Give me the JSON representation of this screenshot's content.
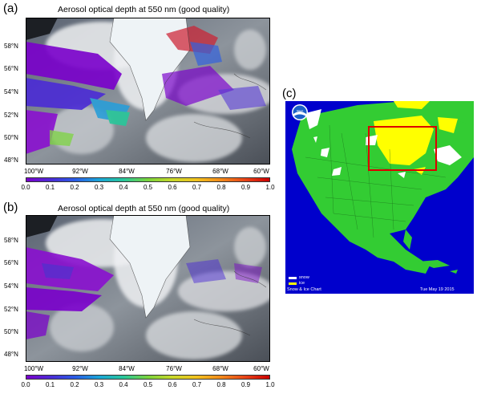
{
  "panels": [
    {
      "label": "(a)",
      "title": "Aerosol optical depth at 550 nm (good quality)",
      "lat_labels": [
        "58°N",
        "56°N",
        "54°N",
        "52°N",
        "50°N",
        "48°N"
      ],
      "lon_labels": [
        "100°W",
        "92°W",
        "84°W",
        "76°W",
        "68°W",
        "60°W"
      ],
      "colorbar_ticks": [
        "0.0",
        "0.1",
        "0.2",
        "0.3",
        "0.4",
        "0.5",
        "0.6",
        "0.7",
        "0.8",
        "0.9",
        "1.0"
      ],
      "colorbar_range": [
        0.0,
        1.0
      ]
    },
    {
      "label": "(b)",
      "title": "Aerosol optical depth at 550 nm (good quality)",
      "lat_labels": [
        "58°N",
        "56°N",
        "54°N",
        "52°N",
        "50°N",
        "48°N"
      ],
      "lon_labels": [
        "100°W",
        "92°W",
        "84°W",
        "76°W",
        "68°W",
        "60°W"
      ],
      "colorbar_ticks": [
        "0.0",
        "0.1",
        "0.2",
        "0.3",
        "0.4",
        "0.5",
        "0.6",
        "0.7",
        "0.8",
        "0.9",
        "1.0"
      ],
      "colorbar_range": [
        0.0,
        1.0
      ]
    },
    {
      "label": "(c)",
      "logo_text": "NOAA",
      "legend": [
        "snow",
        "ice"
      ],
      "chart_caption": "Snow & Ice Chart",
      "date_text": "Tue May 19  2015"
    }
  ],
  "colors": {
    "land": "#33cc33",
    "ocean": "#0000cc",
    "snow": "#ffffff",
    "ice": "#ffff00",
    "highlight_box": "#dd0000",
    "colorbar": [
      "#7a00cc",
      "#4b2bd6",
      "#2a5ce6",
      "#1aa6d8",
      "#28c79a",
      "#7ad43c",
      "#c8d82a",
      "#f2c21e",
      "#f28a1a",
      "#e84418",
      "#cc0000"
    ]
  }
}
